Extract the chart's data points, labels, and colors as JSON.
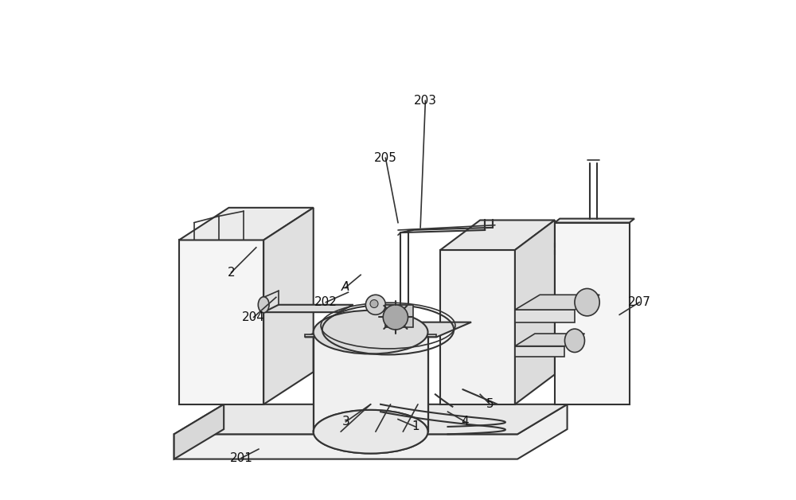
{
  "bg_color": "#ffffff",
  "line_color": "#333333",
  "line_width": 1.5,
  "fig_width": 10.0,
  "fig_height": 6.28
}
